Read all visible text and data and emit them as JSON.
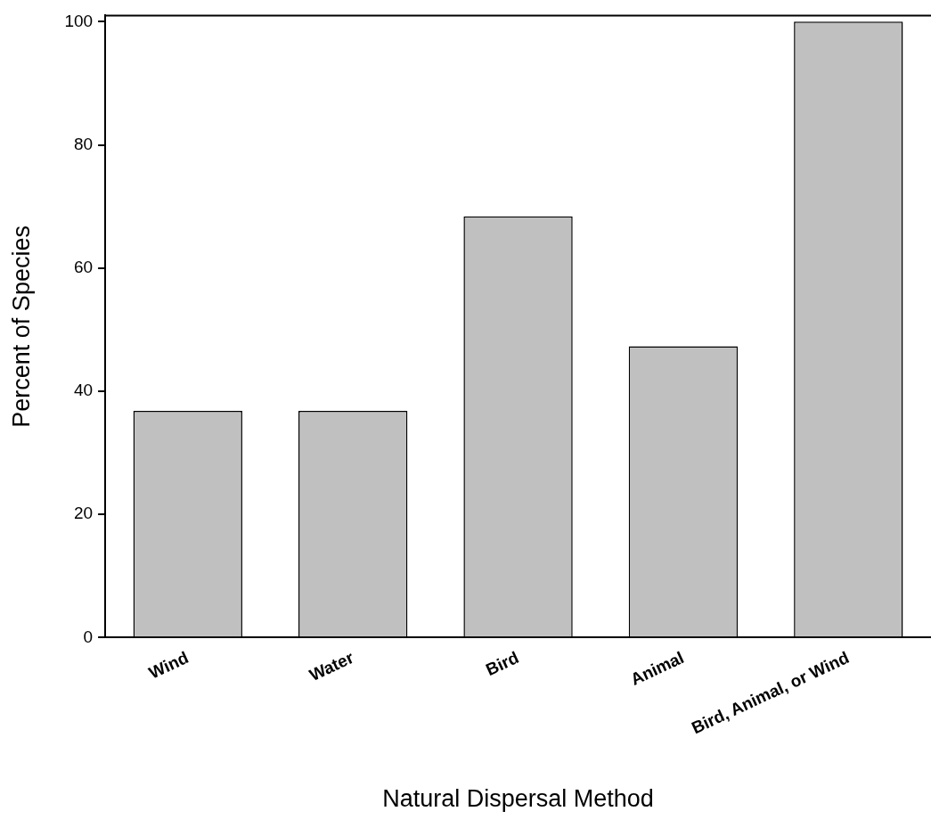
{
  "chart_data": {
    "type": "bar",
    "xlabel": "Natural Dispersal Method",
    "ylabel": "Percent of Species",
    "categories": [
      "Wind",
      "Water",
      "Bird",
      "Animal",
      "Bird, Animal, or Wind"
    ],
    "values": [
      36.8,
      36.8,
      68.4,
      47.3,
      100
    ],
    "color": "#c0c0c0",
    "ylim": [
      0,
      101
    ],
    "yticks": [
      0,
      20,
      40,
      60,
      80,
      100
    ],
    "grid": false,
    "legend": false
  }
}
